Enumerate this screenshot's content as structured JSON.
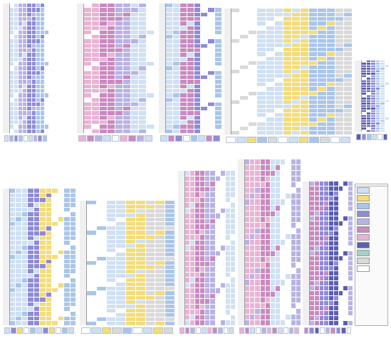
{
  "status_colors": {
    "white": "#ffffff",
    "light_blue": "#cfe0f3",
    "sky_blue": "#a9c6ea",
    "periwinkle": "#b8b3e3",
    "blue_purple": "#8f8bd6",
    "pink": "#e8b4d4",
    "magenta": "#c98ac0",
    "navy": "#5b5fb0",
    "yellow": "#f3dc7a",
    "grey": "#d9d9d9"
  },
  "blocks": [
    {
      "name": "",
      "floors": [
        "",
        "",
        "",
        "",
        "",
        "",
        "",
        "",
        "",
        "",
        "",
        "",
        "",
        "",
        "",
        "",
        "",
        "",
        "",
        "",
        "",
        "",
        "",
        "",
        "",
        "",
        "",
        "",
        ""
      ],
      "units": 9,
      "cells": []
    },
    {
      "name": "",
      "floors": [
        "",
        "",
        "",
        "",
        "",
        "",
        "",
        "",
        "",
        "",
        "",
        "",
        "",
        "",
        "",
        "",
        "",
        "",
        "",
        "",
        "",
        "",
        "",
        "",
        "",
        "",
        "",
        "",
        ""
      ],
      "units": 9,
      "cells": []
    },
    {
      "name": "",
      "floors": [
        "",
        "",
        "",
        "",
        "",
        "",
        "",
        "",
        "",
        "",
        "",
        "",
        "",
        "",
        "",
        "",
        "",
        "",
        "",
        "",
        "",
        "",
        "",
        "",
        "",
        "",
        "",
        "",
        ""
      ],
      "units": 8,
      "cells": []
    },
    {
      "name": "",
      "floors": [
        "",
        "",
        "",
        "",
        "",
        "",
        "",
        "",
        "",
        "",
        "",
        "",
        "",
        "",
        "",
        "",
        "",
        "",
        "",
        "",
        "",
        "",
        "",
        "",
        "",
        "",
        "",
        "",
        ""
      ],
      "units": 14,
      "cells": []
    },
    {
      "name": "",
      "floors": [
        "",
        "",
        "",
        "",
        "",
        "",
        "",
        "",
        "",
        "",
        "",
        "",
        "",
        "",
        "",
        "",
        "",
        "",
        "",
        "",
        "",
        "",
        "",
        "",
        "",
        "",
        "",
        "",
        ""
      ],
      "units": 6,
      "cells": []
    },
    {
      "name": "",
      "floors": [
        "",
        "",
        "",
        "",
        "",
        "",
        "",
        "",
        "",
        "",
        "",
        "",
        "",
        "",
        "",
        "",
        "",
        "",
        "",
        "",
        "",
        "",
        "",
        "",
        "",
        "",
        "",
        "",
        ""
      ],
      "units": 11,
      "cells": []
    },
    {
      "name": "",
      "floors": [
        "",
        "",
        "",
        "",
        "",
        "",
        "",
        "",
        "",
        "",
        "",
        "",
        "",
        "",
        "",
        "",
        "",
        "",
        "",
        "",
        "",
        "",
        "",
        "",
        "",
        "",
        "",
        "",
        ""
      ],
      "units": 9,
      "cells": []
    },
    {
      "name": "",
      "floors": [
        "",
        "",
        "",
        "",
        "",
        "",
        "",
        "",
        "",
        "",
        "",
        "",
        "",
        "",
        "",
        "",
        "",
        "",
        "",
        "",
        "",
        "",
        "",
        "",
        "",
        "",
        "",
        "",
        ""
      ],
      "units": 10,
      "cells": []
    },
    {
      "name": "",
      "floors": [
        "",
        "",
        "",
        "",
        "",
        "",
        "",
        "",
        "",
        "",
        "",
        "",
        "",
        "",
        "",
        "",
        "",
        "",
        "",
        "",
        "",
        "",
        "",
        "",
        "",
        "",
        "",
        "",
        ""
      ],
      "units": 11,
      "cells": []
    },
    {
      "name": "",
      "floors": [
        "",
        "",
        "",
        "",
        "",
        "",
        "",
        "",
        "",
        "",
        "",
        "",
        "",
        "",
        "",
        "",
        "",
        "",
        "",
        "",
        "",
        "",
        "",
        "",
        "",
        "",
        "",
        "",
        ""
      ],
      "units": 9,
      "cells": []
    }
  ],
  "legend": {
    "header": [
      "",
      ""
    ],
    "rows": [
      {
        "label": "",
        "color": "#cfe0f3",
        "count": ""
      },
      {
        "label": "",
        "color": "#f3dc7a",
        "count": ""
      },
      {
        "label": "",
        "color": "#a9c6ea",
        "count": ""
      },
      {
        "label": "",
        "color": "#8f8bd6",
        "count": ""
      },
      {
        "label": "",
        "color": "#b8b3e3",
        "count": ""
      },
      {
        "label": "",
        "color": "#c98ac0",
        "count": ""
      },
      {
        "label": "",
        "color": "#e8b4d4",
        "count": ""
      },
      {
        "label": "",
        "color": "#5b5fb0",
        "count": ""
      },
      {
        "label": "",
        "color": "#9fd3c7",
        "count": ""
      },
      {
        "label": "",
        "color": "#d9d9d9",
        "count": ""
      },
      {
        "label": "",
        "color": "#ffffff",
        "count": ""
      }
    ],
    "notes": [
      "",
      "",
      ""
    ]
  },
  "footer_note": ""
}
